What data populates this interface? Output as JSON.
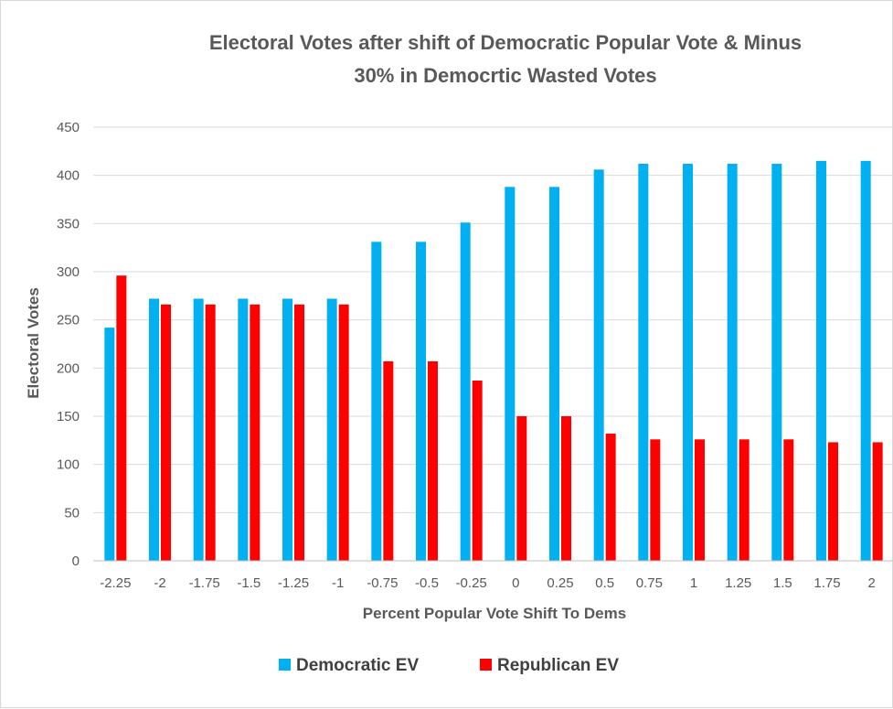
{
  "chart_data": {
    "type": "bar",
    "title_lines": [
      "Electoral Votes after shift of Democratic  Popular Vote  & Minus",
      "30% in Democrtic Wasted Votes"
    ],
    "xlabel": "Percent Popular Vote Shift To Dems",
    "ylabel": "Electoral Votes",
    "categories": [
      "-2.25",
      "-2",
      "-1.75",
      "-1.5",
      "-1.25",
      "-1",
      "-0.75",
      "-0.5",
      "-0.25",
      "0",
      "0.25",
      "0.5",
      "0.75",
      "1",
      "1.25",
      "1.5",
      "1.75",
      "2"
    ],
    "series": [
      {
        "name": "Democratic EV",
        "color": "#00b0f0",
        "values": [
          242,
          272,
          272,
          272,
          272,
          272,
          331,
          331,
          351,
          388,
          388,
          406,
          412,
          412,
          412,
          412,
          415,
          415
        ]
      },
      {
        "name": "Republican EV",
        "color": "#ff0000",
        "values": [
          296,
          266,
          266,
          266,
          266,
          266,
          207,
          207,
          187,
          150,
          150,
          132,
          126,
          126,
          126,
          126,
          123,
          123
        ]
      }
    ],
    "ylim": [
      0,
      450
    ],
    "yticks": [
      "0",
      "50",
      "100",
      "150",
      "200",
      "250",
      "300",
      "350",
      "400",
      "450"
    ],
    "grid": true,
    "legend_position": "bottom"
  }
}
